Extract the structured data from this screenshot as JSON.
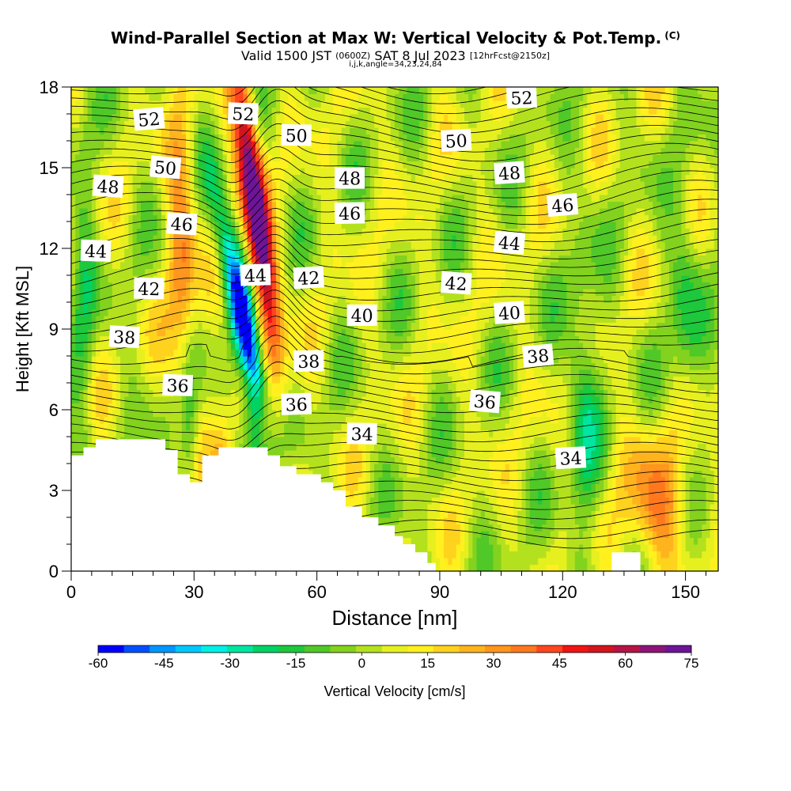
{
  "header": {
    "title": "Wind-Parallel Section at Max W: Vertical Velocity & Pot.Temp.",
    "title_mark": "(C)",
    "subtitle_a": "Valid 1500 JST",
    "subtitle_b": "(0600Z)",
    "subtitle_c": "SAT 8 Jul 2023",
    "subtitle_d": "[12hrFcst@2150z]",
    "subsub": "i,j,k,angle=34,23,24,84"
  },
  "chart_data": {
    "type": "heatmap",
    "xlabel": "Distance [nm]",
    "ylabel": "Height [Kft MSL]",
    "xlim": [
      0,
      158
    ],
    "ylim": [
      0,
      18
    ],
    "xticks": [
      0,
      30,
      60,
      90,
      120,
      150
    ],
    "yticks": [
      0,
      3,
      6,
      9,
      12,
      15,
      18
    ],
    "colorbar": {
      "label": "Vertical Velocity [cm/s]",
      "ticks": [
        -60,
        -45,
        -30,
        -15,
        0,
        15,
        30,
        45,
        60,
        75
      ],
      "colors": [
        "#0000ff",
        "#0050ff",
        "#0096ff",
        "#00c8ff",
        "#00f0e6",
        "#00e6a0",
        "#00d264",
        "#1ec83c",
        "#50c828",
        "#82d21e",
        "#b4e11e",
        "#e6f01e",
        "#fff01e",
        "#ffd21e",
        "#ffb41e",
        "#ff961e",
        "#ff781e",
        "#ff461e",
        "#f01414",
        "#d2141e",
        "#b41446",
        "#8c1478",
        "#6e1496"
      ]
    },
    "updraft_core": {
      "x": 48,
      "z": [
        7,
        17
      ],
      "w_max": 70
    },
    "downdraft_core": {
      "x": 45,
      "z": [
        5,
        12
      ],
      "w_min": -60
    },
    "theta_contour_labels": [
      {
        "text": "52",
        "x": 19,
        "z": 16.8
      },
      {
        "text": "52",
        "x": 42,
        "z": 17.0
      },
      {
        "text": "52",
        "x": 110,
        "z": 17.6
      },
      {
        "text": "50",
        "x": 23,
        "z": 15.0
      },
      {
        "text": "50",
        "x": 55,
        "z": 16.2
      },
      {
        "text": "50",
        "x": 94,
        "z": 16.0
      },
      {
        "text": "48",
        "x": 9,
        "z": 14.3
      },
      {
        "text": "48",
        "x": 68,
        "z": 14.6
      },
      {
        "text": "48",
        "x": 107,
        "z": 14.8
      },
      {
        "text": "46",
        "x": 27,
        "z": 12.9
      },
      {
        "text": "46",
        "x": 68,
        "z": 13.3
      },
      {
        "text": "46",
        "x": 120,
        "z": 13.6
      },
      {
        "text": "44",
        "x": 6,
        "z": 11.9
      },
      {
        "text": "44",
        "x": 45,
        "z": 11.0
      },
      {
        "text": "44",
        "x": 107,
        "z": 12.2
      },
      {
        "text": "42",
        "x": 19,
        "z": 10.5
      },
      {
        "text": "42",
        "x": 58,
        "z": 10.9
      },
      {
        "text": "42",
        "x": 94,
        "z": 10.7
      },
      {
        "text": "40",
        "x": 71,
        "z": 9.5
      },
      {
        "text": "40",
        "x": 107,
        "z": 9.6
      },
      {
        "text": "38",
        "x": 13,
        "z": 8.7
      },
      {
        "text": "38",
        "x": 58,
        "z": 7.8
      },
      {
        "text": "38",
        "x": 114,
        "z": 8.0
      },
      {
        "text": "36",
        "x": 26,
        "z": 6.9
      },
      {
        "text": "36",
        "x": 55,
        "z": 6.2
      },
      {
        "text": "36",
        "x": 101,
        "z": 6.3
      },
      {
        "text": "34",
        "x": 71,
        "z": 5.1
      },
      {
        "text": "34",
        "x": 122,
        "z": 4.2
      }
    ],
    "terrain_top": [
      [
        0,
        4.3
      ],
      [
        3,
        4.3
      ],
      [
        3,
        4.6
      ],
      [
        6,
        4.6
      ],
      [
        6,
        4.9
      ],
      [
        23,
        4.9
      ],
      [
        23,
        4.5
      ],
      [
        26,
        4.5
      ],
      [
        26,
        3.6
      ],
      [
        29,
        3.6
      ],
      [
        29,
        3.3
      ],
      [
        32,
        3.3
      ],
      [
        32,
        4.3
      ],
      [
        36,
        4.3
      ],
      [
        36,
        4.6
      ],
      [
        48,
        4.6
      ],
      [
        48,
        4.3
      ],
      [
        51,
        4.3
      ],
      [
        51,
        3.9
      ],
      [
        55,
        3.9
      ],
      [
        55,
        3.6
      ],
      [
        61,
        3.6
      ],
      [
        61,
        3.3
      ],
      [
        64,
        3.3
      ],
      [
        64,
        3.0
      ],
      [
        67,
        3.0
      ],
      [
        67,
        2.4
      ],
      [
        71,
        2.4
      ],
      [
        71,
        2.0
      ],
      [
        75,
        2.0
      ],
      [
        75,
        1.7
      ],
      [
        79,
        1.7
      ],
      [
        79,
        1.3
      ],
      [
        81,
        1.3
      ],
      [
        81,
        1.0
      ],
      [
        84,
        1.0
      ],
      [
        84,
        0.7
      ],
      [
        87,
        0.7
      ],
      [
        87,
        0.3
      ],
      [
        89,
        0.3
      ],
      [
        89,
        0
      ],
      [
        132,
        0
      ],
      [
        132,
        0.7
      ],
      [
        139,
        0.7
      ],
      [
        139,
        0
      ],
      [
        158,
        0
      ]
    ]
  }
}
